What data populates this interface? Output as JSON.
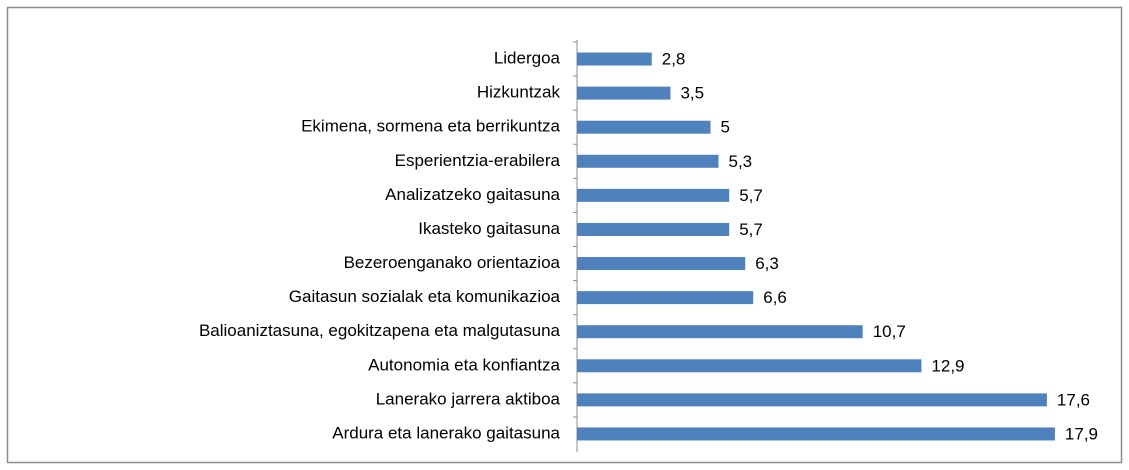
{
  "chart_data": {
    "type": "barh",
    "categories": [
      "Lidergoa",
      "Hizkuntzak",
      "Ekimena, sormena eta berrikuntza",
      "Esperientzia-erabilera",
      "Analizatzeko gaitasuna",
      "Ikasteko gaitasuna",
      "Bezeroenganako orientazioa",
      "Gaitasun sozialak eta komunikazioa",
      "Balioaniztasuna, egokitzapena eta malgutasuna",
      "Autonomia eta konfiantza",
      "Lanerako jarrera aktiboa",
      "Ardura eta lanerako gaitasuna"
    ],
    "values": [
      2.8,
      3.5,
      5,
      5.3,
      5.7,
      5.7,
      6.3,
      6.6,
      10.7,
      12.9,
      17.6,
      17.9
    ],
    "value_labels": [
      "2,8",
      "3,5",
      "5",
      "5,3",
      "5,7",
      "5,7",
      "6,3",
      "6,6",
      "10,7",
      "12,9",
      "17,6",
      "17,9"
    ],
    "color": "#4f81bd",
    "xlim": [
      0,
      20
    ]
  }
}
